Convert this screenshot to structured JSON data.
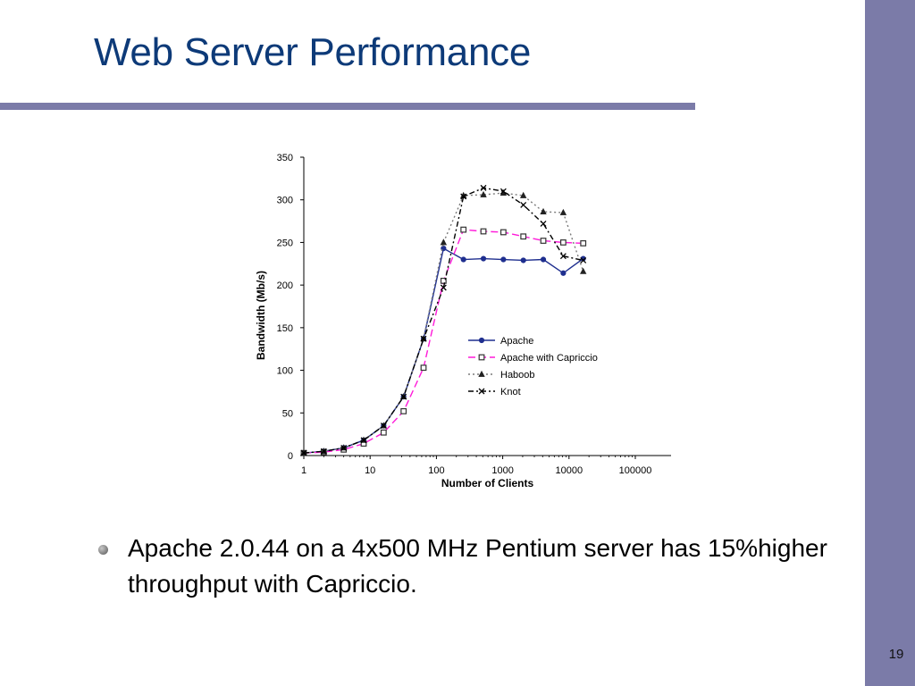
{
  "slide": {
    "title": "Web Server Performance",
    "bullet": "Apache 2.0.44 on a 4x500 MHz Pentium server has 15%higher throughput with Capriccio.",
    "page_number": "19"
  },
  "colors": {
    "title": "#0d3a78",
    "accent_band": "#7b7ba8"
  },
  "chart_data": {
    "type": "line",
    "xlabel": "Number of Clients",
    "ylabel": "Bandwidth (Mb/s)",
    "x_scale": "log",
    "xlim": [
      1,
      100000
    ],
    "ylim": [
      0,
      350
    ],
    "x_ticks": [
      "1",
      "10",
      "100",
      "1000",
      "10000",
      "100000"
    ],
    "y_ticks": [
      "0",
      "50",
      "100",
      "150",
      "200",
      "250",
      "300",
      "350"
    ],
    "grid": false,
    "legend_position": "right-middle",
    "series": [
      {
        "name": "Apache",
        "color": "#1f2f8f",
        "dash": "",
        "marker": "dot",
        "x": [
          1,
          2,
          4,
          8,
          16,
          32,
          64,
          128,
          256,
          512,
          1024,
          2048,
          4096,
          8192,
          16384
        ],
        "y": [
          3,
          5,
          9,
          18,
          35,
          69,
          137,
          243,
          230,
          231,
          230,
          229,
          230,
          214,
          231
        ]
      },
      {
        "name": "Apache with Capriccio",
        "color": "#ff1ad9",
        "dash": "8 4",
        "marker": "square",
        "x": [
          1,
          2,
          4,
          8,
          16,
          32,
          64,
          128,
          256,
          512,
          1024,
          2048,
          4096,
          8192,
          16384
        ],
        "y": [
          3,
          4,
          7,
          14,
          27,
          52,
          103,
          205,
          265,
          263,
          262,
          257,
          252,
          250,
          249
        ]
      },
      {
        "name": "Haboob",
        "color": "#7a7a7a",
        "dash": "2 3",
        "marker": "triangle",
        "x": [
          1,
          2,
          4,
          8,
          16,
          32,
          64,
          128,
          256,
          512,
          1024,
          2048,
          4096,
          8192,
          16384
        ],
        "y": [
          3,
          5,
          9,
          18,
          35,
          69,
          137,
          250,
          305,
          306,
          308,
          305,
          286,
          285,
          216
        ]
      },
      {
        "name": "Knot",
        "color": "#000000",
        "dash": "6 3 2 3",
        "marker": "x",
        "x": [
          1,
          2,
          4,
          8,
          16,
          32,
          64,
          128,
          256,
          512,
          1024,
          2048,
          4096,
          8192,
          16384
        ],
        "y": [
          3,
          5,
          9,
          18,
          35,
          69,
          137,
          197,
          304,
          314,
          310,
          294,
          272,
          234,
          229
        ]
      }
    ]
  }
}
